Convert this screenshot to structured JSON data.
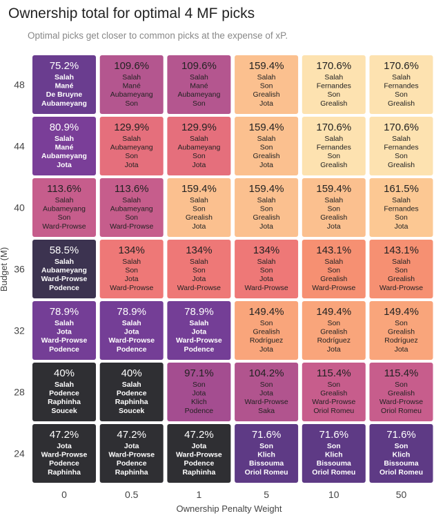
{
  "chart_data": {
    "type": "heatmap",
    "title": "Ownership total for optimal 4 MF picks",
    "subtitle": "Optimal picks get closer to common picks at the expense of xP.",
    "xlabel": "Ownership Penalty Weight",
    "ylabel": "Budget (M)",
    "x_categories": [
      "0",
      "0.5",
      "1",
      "5",
      "10",
      "50"
    ],
    "y_categories": [
      "48",
      "44",
      "40",
      "36",
      "32",
      "28",
      "24"
    ],
    "legend": "none",
    "grid": false,
    "cells": [
      [
        {
          "value": "75.2%",
          "players": [
            "Salah",
            "Mané",
            "De Bruyne",
            "Aubameyang"
          ],
          "color": "#6a3d8f",
          "text_color": "#ffffff"
        },
        {
          "value": "109.6%",
          "players": [
            "Salah",
            "Mané",
            "Aubameyang",
            "Son"
          ],
          "color": "#b4568f",
          "text_color": "#222222"
        },
        {
          "value": "109.6%",
          "players": [
            "Salah",
            "Mané",
            "Aubameyang",
            "Son"
          ],
          "color": "#b4568f",
          "text_color": "#222222"
        },
        {
          "value": "159.4%",
          "players": [
            "Salah",
            "Son",
            "Grealish",
            "Jota"
          ],
          "color": "#fbc08f",
          "text_color": "#222222"
        },
        {
          "value": "170.6%",
          "players": [
            "Salah",
            "Fernandes",
            "Son",
            "Grealish"
          ],
          "color": "#fde2b0",
          "text_color": "#222222"
        },
        {
          "value": "170.6%",
          "players": [
            "Salah",
            "Fernandes",
            "Son",
            "Grealish"
          ],
          "color": "#fde2b0",
          "text_color": "#222222"
        }
      ],
      [
        {
          "value": "80.9%",
          "players": [
            "Salah",
            "Mané",
            "Aubameyang",
            "Jota"
          ],
          "color": "#7a3e98",
          "text_color": "#ffffff"
        },
        {
          "value": "129.9%",
          "players": [
            "Salah",
            "Aubameyang",
            "Son",
            "Jota"
          ],
          "color": "#e56f7c",
          "text_color": "#222222"
        },
        {
          "value": "129.9%",
          "players": [
            "Salah",
            "Aubameyang",
            "Son",
            "Jota"
          ],
          "color": "#e56f7c",
          "text_color": "#222222"
        },
        {
          "value": "159.4%",
          "players": [
            "Salah",
            "Son",
            "Grealish",
            "Jota"
          ],
          "color": "#fbc08f",
          "text_color": "#222222"
        },
        {
          "value": "170.6%",
          "players": [
            "Salah",
            "Fernandes",
            "Son",
            "Grealish"
          ],
          "color": "#fde2b0",
          "text_color": "#222222"
        },
        {
          "value": "170.6%",
          "players": [
            "Salah",
            "Fernandes",
            "Son",
            "Grealish"
          ],
          "color": "#fde2b0",
          "text_color": "#222222"
        }
      ],
      [
        {
          "value": "113.6%",
          "players": [
            "Salah",
            "Aubameyang",
            "Son",
            "Ward-Prowse"
          ],
          "color": "#c65d8c",
          "text_color": "#222222"
        },
        {
          "value": "113.6%",
          "players": [
            "Salah",
            "Aubameyang",
            "Son",
            "Ward-Prowse"
          ],
          "color": "#c65d8c",
          "text_color": "#222222"
        },
        {
          "value": "159.4%",
          "players": [
            "Salah",
            "Son",
            "Grealish",
            "Jota"
          ],
          "color": "#fbc08f",
          "text_color": "#222222"
        },
        {
          "value": "159.4%",
          "players": [
            "Salah",
            "Son",
            "Grealish",
            "Jota"
          ],
          "color": "#fbc08f",
          "text_color": "#222222"
        },
        {
          "value": "159.4%",
          "players": [
            "Salah",
            "Son",
            "Grealish",
            "Jota"
          ],
          "color": "#fbc08f",
          "text_color": "#222222"
        },
        {
          "value": "161.5%",
          "players": [
            "Salah",
            "Fernandes",
            "Son",
            "Jota"
          ],
          "color": "#fcc893",
          "text_color": "#222222"
        }
      ],
      [
        {
          "value": "58.5%",
          "players": [
            "Salah",
            "Aubameyang",
            "Ward-Prowse",
            "Podence"
          ],
          "color": "#3c3350",
          "text_color": "#ffffff"
        },
        {
          "value": "134%",
          "players": [
            "Salah",
            "Son",
            "Jota",
            "Ward-Prowse"
          ],
          "color": "#ee7877",
          "text_color": "#222222"
        },
        {
          "value": "134%",
          "players": [
            "Salah",
            "Son",
            "Jota",
            "Ward-Prowse"
          ],
          "color": "#ee7877",
          "text_color": "#222222"
        },
        {
          "value": "134%",
          "players": [
            "Salah",
            "Son",
            "Jota",
            "Ward-Prowse"
          ],
          "color": "#ee7877",
          "text_color": "#222222"
        },
        {
          "value": "143.1%",
          "players": [
            "Salah",
            "Son",
            "Grealish",
            "Ward-Prowse"
          ],
          "color": "#f69072",
          "text_color": "#222222"
        },
        {
          "value": "143.1%",
          "players": [
            "Salah",
            "Son",
            "Grealish",
            "Ward-Prowse"
          ],
          "color": "#f69072",
          "text_color": "#222222"
        }
      ],
      [
        {
          "value": "78.9%",
          "players": [
            "Salah",
            "Jota",
            "Ward-Prowse",
            "Podence"
          ],
          "color": "#743e96",
          "text_color": "#ffffff"
        },
        {
          "value": "78.9%",
          "players": [
            "Salah",
            "Jota",
            "Ward-Prowse",
            "Podence"
          ],
          "color": "#743e96",
          "text_color": "#ffffff"
        },
        {
          "value": "78.9%",
          "players": [
            "Salah",
            "Jota",
            "Ward-Prowse",
            "Podence"
          ],
          "color": "#743e96",
          "text_color": "#ffffff"
        },
        {
          "value": "149.4%",
          "players": [
            "Son",
            "Grealish",
            "Rodríguez",
            "Jota"
          ],
          "color": "#f9a57b",
          "text_color": "#222222"
        },
        {
          "value": "149.4%",
          "players": [
            "Son",
            "Grealish",
            "Rodríguez",
            "Jota"
          ],
          "color": "#f9a57b",
          "text_color": "#222222"
        },
        {
          "value": "149.4%",
          "players": [
            "Son",
            "Grealish",
            "Rodríguez",
            "Jota"
          ],
          "color": "#f9a57b",
          "text_color": "#222222"
        }
      ],
      [
        {
          "value": "40%",
          "players": [
            "Salah",
            "Podence",
            "Raphinha",
            "Soucek"
          ],
          "color": "#2f2f33",
          "text_color": "#ffffff"
        },
        {
          "value": "40%",
          "players": [
            "Salah",
            "Podence",
            "Raphinha",
            "Soucek"
          ],
          "color": "#2f2f33",
          "text_color": "#ffffff"
        },
        {
          "value": "97.1%",
          "players": [
            "Son",
            "Jota",
            "Klich",
            "Podence"
          ],
          "color": "#a44d90",
          "text_color": "#222222"
        },
        {
          "value": "104.2%",
          "players": [
            "Son",
            "Jota",
            "Ward-Prowse",
            "Saka"
          ],
          "color": "#b1548e",
          "text_color": "#222222"
        },
        {
          "value": "115.4%",
          "players": [
            "Son",
            "Grealish",
            "Ward-Prowse",
            "Oriol Romeu"
          ],
          "color": "#c75d8c",
          "text_color": "#222222"
        },
        {
          "value": "115.4%",
          "players": [
            "Son",
            "Grealish",
            "Ward-Prowse",
            "Oriol Romeu"
          ],
          "color": "#c75d8c",
          "text_color": "#222222"
        }
      ],
      [
        {
          "value": "47.2%",
          "players": [
            "Jota",
            "Ward-Prowse",
            "Podence",
            "Raphinha"
          ],
          "color": "#2f2f33",
          "text_color": "#ffffff"
        },
        {
          "value": "47.2%",
          "players": [
            "Jota",
            "Ward-Prowse",
            "Podence",
            "Raphinha"
          ],
          "color": "#2f2f33",
          "text_color": "#ffffff"
        },
        {
          "value": "47.2%",
          "players": [
            "Jota",
            "Ward-Prowse",
            "Podence",
            "Raphinha"
          ],
          "color": "#2f2f33",
          "text_color": "#ffffff"
        },
        {
          "value": "71.6%",
          "players": [
            "Son",
            "Klich",
            "Bissouma",
            "Oriol Romeu"
          ],
          "color": "#5e3a85",
          "text_color": "#ffffff"
        },
        {
          "value": "71.6%",
          "players": [
            "Son",
            "Klich",
            "Bissouma",
            "Oriol Romeu"
          ],
          "color": "#5e3a85",
          "text_color": "#ffffff"
        },
        {
          "value": "71.6%",
          "players": [
            "Son",
            "Klich",
            "Bissouma",
            "Oriol Romeu"
          ],
          "color": "#5e3a85",
          "text_color": "#ffffff"
        }
      ]
    ]
  }
}
